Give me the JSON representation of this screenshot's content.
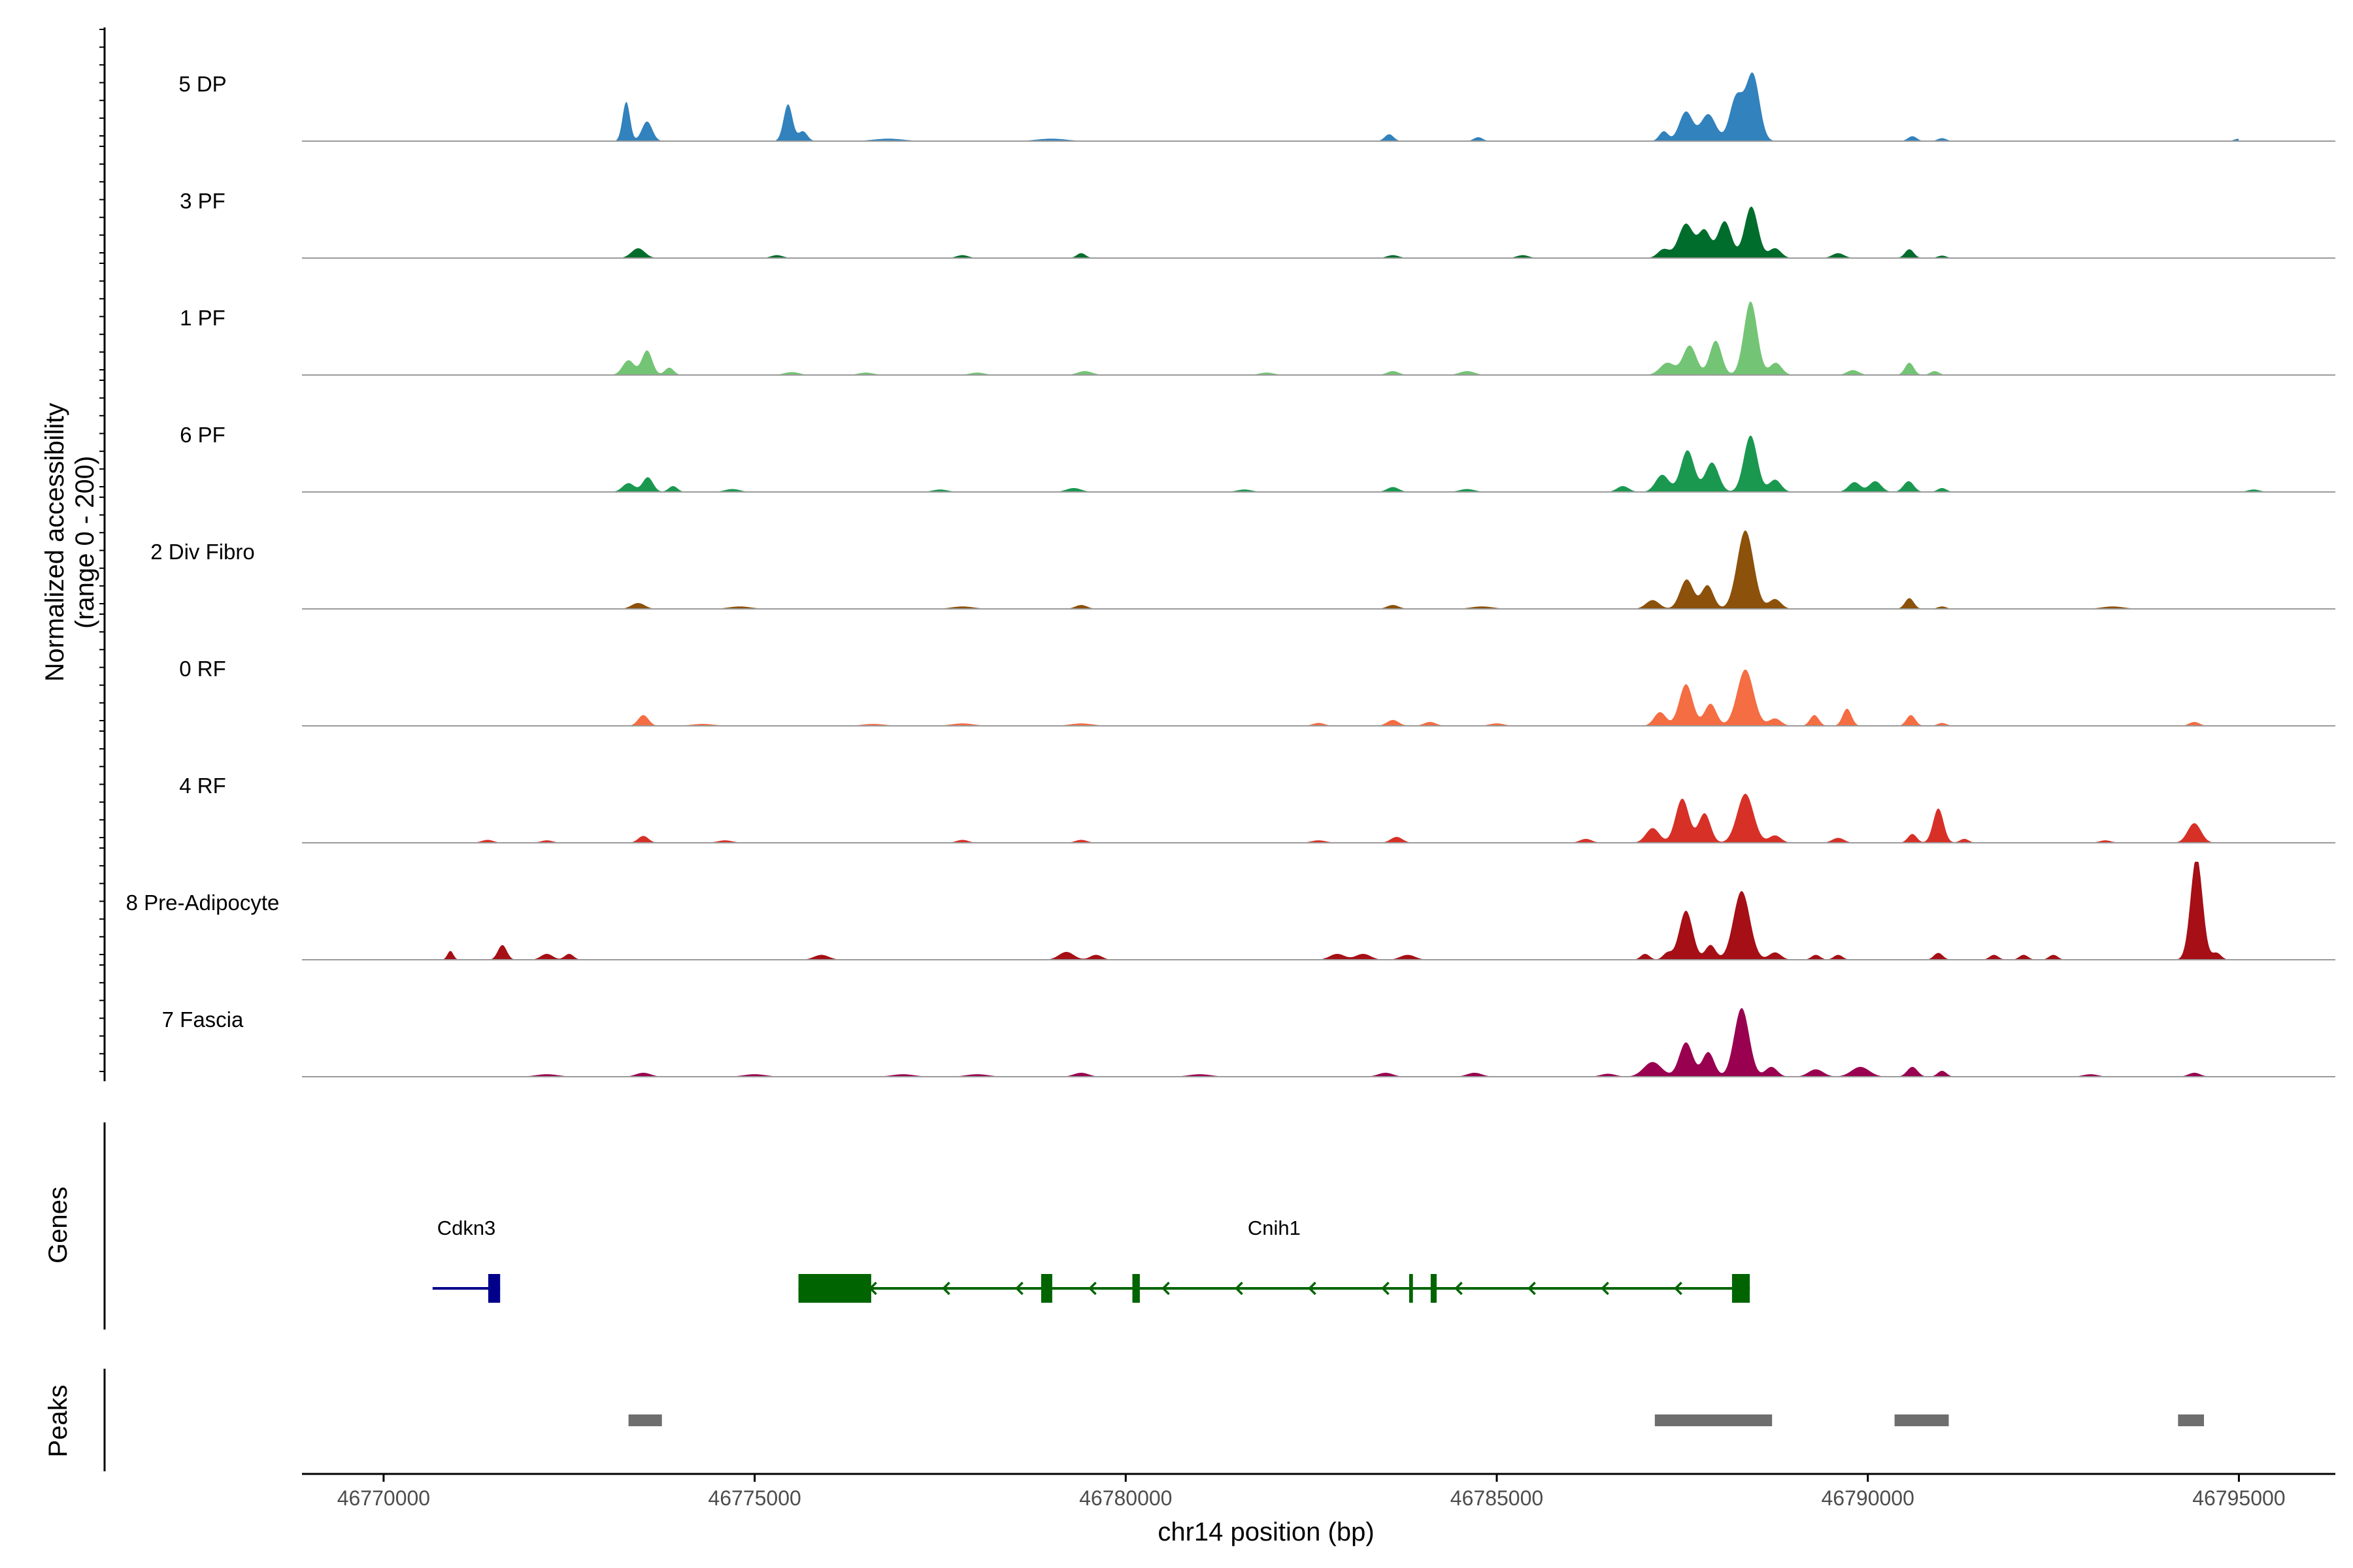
{
  "chart_data": {
    "type": "area",
    "chromosome": "chr14",
    "x_range": [
      46768900,
      46796300
    ],
    "y_range": [
      0,
      200
    ],
    "y_axis_title": [
      "Normalized accessibility",
      "(range 0 - 200)"
    ],
    "x_axis_title": "chr14 position (bp)",
    "x_ticks": [
      46770000,
      46775000,
      46780000,
      46785000,
      46790000,
      46795000
    ],
    "x_tick_labels": [
      "46770000",
      "46775000",
      "46780000",
      "46785000",
      "46790000",
      "46795000"
    ],
    "track_labels": {
      "genes": "Genes",
      "peaks": "Peaks"
    },
    "series": [
      {
        "name": "5 DP",
        "color": "#3182bd",
        "span": [
          46772800,
          46795000
        ],
        "peaks": [
          [
            46773270,
            80,
            50
          ],
          [
            46773550,
            40,
            70
          ],
          [
            46775450,
            75,
            60
          ],
          [
            46775650,
            20,
            60
          ],
          [
            46776800,
            5,
            200
          ],
          [
            46779000,
            5,
            200
          ],
          [
            46783550,
            14,
            60
          ],
          [
            46784750,
            8,
            60
          ],
          [
            46787250,
            20,
            60
          ],
          [
            46787550,
            60,
            90
          ],
          [
            46787850,
            55,
            100
          ],
          [
            46788230,
            90,
            90
          ],
          [
            46788450,
            135,
            90
          ],
          [
            46790600,
            10,
            60
          ],
          [
            46791000,
            6,
            60
          ],
          [
            46795000,
            5,
            60
          ]
        ]
      },
      {
        "name": "3 PF",
        "color": "#006d2c",
        "span": [
          46771800,
          46795000
        ],
        "peaks": [
          [
            46773430,
            20,
            90
          ],
          [
            46775300,
            6,
            80
          ],
          [
            46777800,
            6,
            80
          ],
          [
            46779400,
            10,
            60
          ],
          [
            46783600,
            6,
            80
          ],
          [
            46785350,
            6,
            80
          ],
          [
            46787250,
            18,
            80
          ],
          [
            46787550,
            70,
            100
          ],
          [
            46787800,
            55,
            80
          ],
          [
            46788070,
            75,
            90
          ],
          [
            46788430,
            105,
            90
          ],
          [
            46788750,
            20,
            80
          ],
          [
            46789600,
            10,
            80
          ],
          [
            46790560,
            18,
            60
          ],
          [
            46791000,
            5,
            60
          ]
        ]
      },
      {
        "name": "1 PF",
        "color": "#74c476",
        "span": [
          46771600,
          46794900
        ],
        "peaks": [
          [
            46773300,
            30,
            80
          ],
          [
            46773550,
            50,
            70
          ],
          [
            46773850,
            15,
            60
          ],
          [
            46775500,
            6,
            100
          ],
          [
            46776500,
            5,
            100
          ],
          [
            46778000,
            5,
            100
          ],
          [
            46779450,
            8,
            100
          ],
          [
            46781900,
            5,
            100
          ],
          [
            46783600,
            8,
            80
          ],
          [
            46784600,
            8,
            100
          ],
          [
            46787300,
            25,
            100
          ],
          [
            46787600,
            60,
            90
          ],
          [
            46787950,
            70,
            80
          ],
          [
            46788420,
            150,
            90
          ],
          [
            46788760,
            25,
            80
          ],
          [
            46789800,
            10,
            80
          ],
          [
            46790560,
            25,
            60
          ],
          [
            46790900,
            8,
            60
          ]
        ]
      },
      {
        "name": "6 PF",
        "color": "#1a9850",
        "span": [
          46772600,
          46796100
        ],
        "peaks": [
          [
            46773300,
            18,
            80
          ],
          [
            46773560,
            30,
            70
          ],
          [
            46773900,
            12,
            60
          ],
          [
            46774700,
            6,
            100
          ],
          [
            46777500,
            5,
            100
          ],
          [
            46779300,
            8,
            100
          ],
          [
            46781600,
            5,
            100
          ],
          [
            46783600,
            10,
            80
          ],
          [
            46784600,
            6,
            100
          ],
          [
            46786700,
            12,
            80
          ],
          [
            46787230,
            35,
            90
          ],
          [
            46787570,
            85,
            90
          ],
          [
            46787900,
            60,
            90
          ],
          [
            46788420,
            115,
            90
          ],
          [
            46788750,
            25,
            80
          ],
          [
            46789820,
            20,
            80
          ],
          [
            46790100,
            22,
            80
          ],
          [
            46790550,
            22,
            70
          ],
          [
            46791000,
            8,
            60
          ],
          [
            46795200,
            5,
            80
          ]
        ]
      },
      {
        "name": "2 Div Fibro",
        "color": "#8c510a",
        "span": [
          46771800,
          46795200
        ],
        "peaks": [
          [
            46773430,
            12,
            90
          ],
          [
            46774800,
            5,
            150
          ],
          [
            46777800,
            5,
            150
          ],
          [
            46779400,
            8,
            80
          ],
          [
            46783600,
            8,
            80
          ],
          [
            46784800,
            5,
            150
          ],
          [
            46787100,
            18,
            90
          ],
          [
            46787560,
            60,
            90
          ],
          [
            46787840,
            48,
            80
          ],
          [
            46788350,
            160,
            110
          ],
          [
            46788750,
            20,
            80
          ],
          [
            46790560,
            22,
            60
          ],
          [
            46791000,
            5,
            60
          ],
          [
            46793300,
            5,
            150
          ]
        ]
      },
      {
        "name": "0 RF",
        "color": "#f46d43",
        "span": [
          46771200,
          46794800
        ],
        "peaks": [
          [
            46773500,
            22,
            70
          ],
          [
            46774300,
            4,
            150
          ],
          [
            46776600,
            4,
            150
          ],
          [
            46777800,
            5,
            150
          ],
          [
            46779400,
            5,
            150
          ],
          [
            46782600,
            6,
            80
          ],
          [
            46783600,
            12,
            80
          ],
          [
            46784100,
            8,
            80
          ],
          [
            46785000,
            5,
            100
          ],
          [
            46787200,
            28,
            80
          ],
          [
            46787550,
            85,
            90
          ],
          [
            46787880,
            45,
            80
          ],
          [
            46788350,
            115,
            110
          ],
          [
            46788750,
            15,
            80
          ],
          [
            46789280,
            22,
            60
          ],
          [
            46789720,
            35,
            60
          ],
          [
            46790580,
            22,
            60
          ],
          [
            46791000,
            6,
            60
          ],
          [
            46794400,
            8,
            70
          ]
        ]
      },
      {
        "name": "4 RF",
        "color": "#d73027",
        "span": [
          46771200,
          46795000
        ],
        "peaks": [
          [
            46771400,
            6,
            80
          ],
          [
            46772200,
            5,
            80
          ],
          [
            46773500,
            14,
            70
          ],
          [
            46774600,
            5,
            100
          ],
          [
            46777800,
            6,
            80
          ],
          [
            46779400,
            6,
            80
          ],
          [
            46782600,
            5,
            100
          ],
          [
            46783650,
            12,
            80
          ],
          [
            46786200,
            8,
            80
          ],
          [
            46787100,
            30,
            90
          ],
          [
            46787500,
            90,
            90
          ],
          [
            46787800,
            60,
            80
          ],
          [
            46788350,
            100,
            110
          ],
          [
            46788750,
            15,
            80
          ],
          [
            46789600,
            10,
            80
          ],
          [
            46790600,
            18,
            60
          ],
          [
            46790950,
            70,
            70
          ],
          [
            46791300,
            8,
            60
          ],
          [
            46793200,
            5,
            80
          ],
          [
            46794400,
            40,
            90
          ]
        ]
      },
      {
        "name": "8 Pre-Adipocyte",
        "color": "#a50f15",
        "span": [
          46770800,
          46795500
        ],
        "peaks": [
          [
            46770900,
            18,
            40
          ],
          [
            46771600,
            30,
            60
          ],
          [
            46772200,
            12,
            80
          ],
          [
            46772500,
            12,
            60
          ],
          [
            46775900,
            10,
            100
          ],
          [
            46779200,
            16,
            100
          ],
          [
            46779600,
            10,
            80
          ],
          [
            46782850,
            12,
            100
          ],
          [
            46783200,
            12,
            100
          ],
          [
            46783800,
            10,
            100
          ],
          [
            46787000,
            12,
            60
          ],
          [
            46787300,
            14,
            60
          ],
          [
            46787550,
            100,
            90
          ],
          [
            46787880,
            30,
            70
          ],
          [
            46788300,
            140,
            110
          ],
          [
            46788750,
            15,
            80
          ],
          [
            46789300,
            10,
            60
          ],
          [
            46789600,
            10,
            60
          ],
          [
            46790950,
            14,
            60
          ],
          [
            46791700,
            10,
            60
          ],
          [
            46792100,
            10,
            60
          ],
          [
            46792500,
            10,
            60
          ],
          [
            46794430,
            210,
            80
          ],
          [
            46794700,
            14,
            60
          ]
        ]
      },
      {
        "name": "7 Fascia",
        "color": "#99004f",
        "span": [
          46771500,
          46795000
        ],
        "peaks": [
          [
            46772200,
            5,
            150
          ],
          [
            46773500,
            8,
            100
          ],
          [
            46775000,
            5,
            150
          ],
          [
            46777000,
            5,
            150
          ],
          [
            46778000,
            5,
            150
          ],
          [
            46779400,
            8,
            100
          ],
          [
            46781000,
            5,
            150
          ],
          [
            46783500,
            8,
            100
          ],
          [
            46784700,
            8,
            100
          ],
          [
            46786500,
            6,
            100
          ],
          [
            46787100,
            30,
            120
          ],
          [
            46787550,
            70,
            90
          ],
          [
            46787850,
            50,
            80
          ],
          [
            46788300,
            140,
            100
          ],
          [
            46788700,
            20,
            80
          ],
          [
            46789300,
            15,
            100
          ],
          [
            46789900,
            20,
            120
          ],
          [
            46790600,
            20,
            70
          ],
          [
            46791000,
            12,
            60
          ],
          [
            46793000,
            5,
            100
          ],
          [
            46794400,
            8,
            80
          ]
        ]
      }
    ],
    "genes": [
      {
        "name": "Cdkn3",
        "color": "#00008b",
        "start": 46770660,
        "end": 46771570,
        "strand": "-",
        "exons": [
          [
            46771410,
            46771570
          ]
        ]
      },
      {
        "name": "Cnih1",
        "color": "#006400",
        "start": 46775590,
        "end": 46788410,
        "strand": "-",
        "exons": [
          [
            46775590,
            46776570
          ],
          [
            46778860,
            46779010
          ],
          [
            46780090,
            46780190
          ],
          [
            46783820,
            46783870
          ],
          [
            46784110,
            46784190
          ],
          [
            46788170,
            46788410
          ]
        ]
      }
    ],
    "peak_regions": [
      [
        46773300,
        46773750
      ],
      [
        46787130,
        46788710
      ],
      [
        46790360,
        46791090
      ],
      [
        46794180,
        46794530
      ]
    ]
  }
}
